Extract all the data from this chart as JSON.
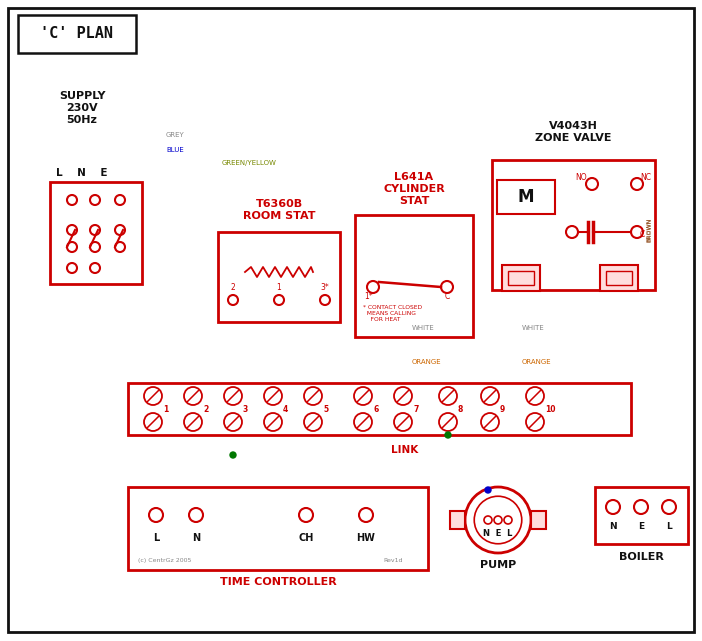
{
  "title": "'C' PLAN",
  "supply_text": "SUPPLY\n230V\n50Hz",
  "zone_valve_title": "V4043H\nZONE VALVE",
  "room_stat_title": "T6360B\nROOM STAT",
  "cylinder_stat_title": "L641A\nCYLINDER\nSTAT",
  "time_controller_label": "TIME CONTROLLER",
  "pump_label": "PUMP",
  "boiler_label": "BOILER",
  "link_label": "LINK",
  "contact_note": "* CONTACT CLOSED\n  MEANS CALLING\n    FOR HEAT",
  "copyright": "(c) CentrGz 2005",
  "rev": "Rev1d",
  "RED": "#cc0000",
  "BLUE": "#0000cc",
  "GREEN": "#007700",
  "BROWN": "#8B4513",
  "GREY": "#888888",
  "ORANGE": "#cc6600",
  "BLACK": "#111111",
  "GY": "#778800"
}
